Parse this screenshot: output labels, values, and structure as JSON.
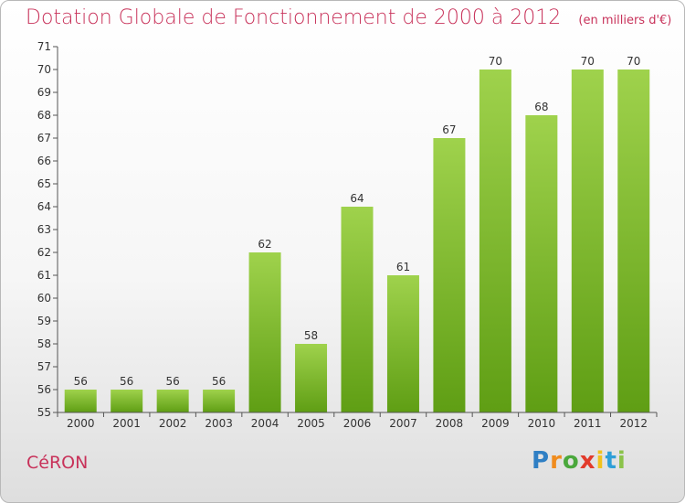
{
  "chart_data": {
    "type": "bar",
    "title": "Dotation Globale de Fonctionnement de 2000 à 2012",
    "subtitle": "(en milliers d'€)",
    "categories": [
      "2000",
      "2001",
      "2002",
      "2003",
      "2004",
      "2005",
      "2006",
      "2007",
      "2008",
      "2009",
      "2010",
      "2011",
      "2012"
    ],
    "values": [
      56,
      56,
      56,
      56,
      62,
      58,
      64,
      61,
      67,
      70,
      68,
      70,
      70
    ],
    "data_labels": [
      "56",
      "56",
      "56",
      "56",
      "62",
      "58",
      "64",
      "61",
      "67",
      "70",
      "68",
      "70",
      "70"
    ],
    "ylim": [
      55,
      71
    ],
    "yticks": [
      "55",
      "56",
      "57",
      "58",
      "59",
      "60",
      "61",
      "62",
      "63",
      "64",
      "65",
      "66",
      "67",
      "68",
      "69",
      "70",
      "71"
    ],
    "xlabel": "",
    "ylabel": "",
    "grid": false,
    "bar_color_top": "#9fd24c",
    "bar_color_bottom": "#5f9e14"
  },
  "commune": "CéRON",
  "logo": {
    "letters": [
      "P",
      "r",
      "o",
      "x",
      "i",
      "t",
      "i"
    ],
    "colors": [
      "#2f7fc4",
      "#f08c1e",
      "#4aa83c",
      "#e23b2b",
      "#f2c21c",
      "#2f9fd8",
      "#8bc34a"
    ]
  },
  "colors": {
    "title": "#c8325a",
    "axis": "#333333"
  }
}
